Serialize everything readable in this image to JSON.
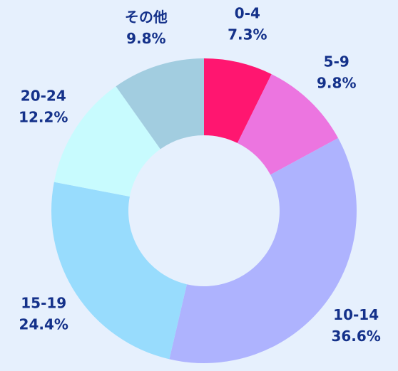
{
  "chart_data": {
    "type": "pie",
    "donut": true,
    "title": "",
    "slices": [
      {
        "label": "0-4",
        "value": 7.3,
        "value_label": "7.3%",
        "color": "#ff1670"
      },
      {
        "label": "5-9",
        "value": 9.8,
        "value_label": "9.8%",
        "color": "#ec75e0"
      },
      {
        "label": "10-14",
        "value": 36.6,
        "value_label": "36.6%",
        "color": "#aeb3fe"
      },
      {
        "label": "15-19",
        "value": 24.4,
        "value_label": "24.4%",
        "color": "#98dcfd"
      },
      {
        "label": "20-24",
        "value": 12.2,
        "value_label": "12.2%",
        "color": "#c8fbfe"
      },
      {
        "label": "その他",
        "value": 9.8,
        "value_label": "9.8%",
        "color": "#a2cde0"
      }
    ],
    "label_color": "#14318a",
    "background": "#e6f0fd",
    "start_position": "top",
    "direction": "clockwise",
    "legend": "none"
  }
}
